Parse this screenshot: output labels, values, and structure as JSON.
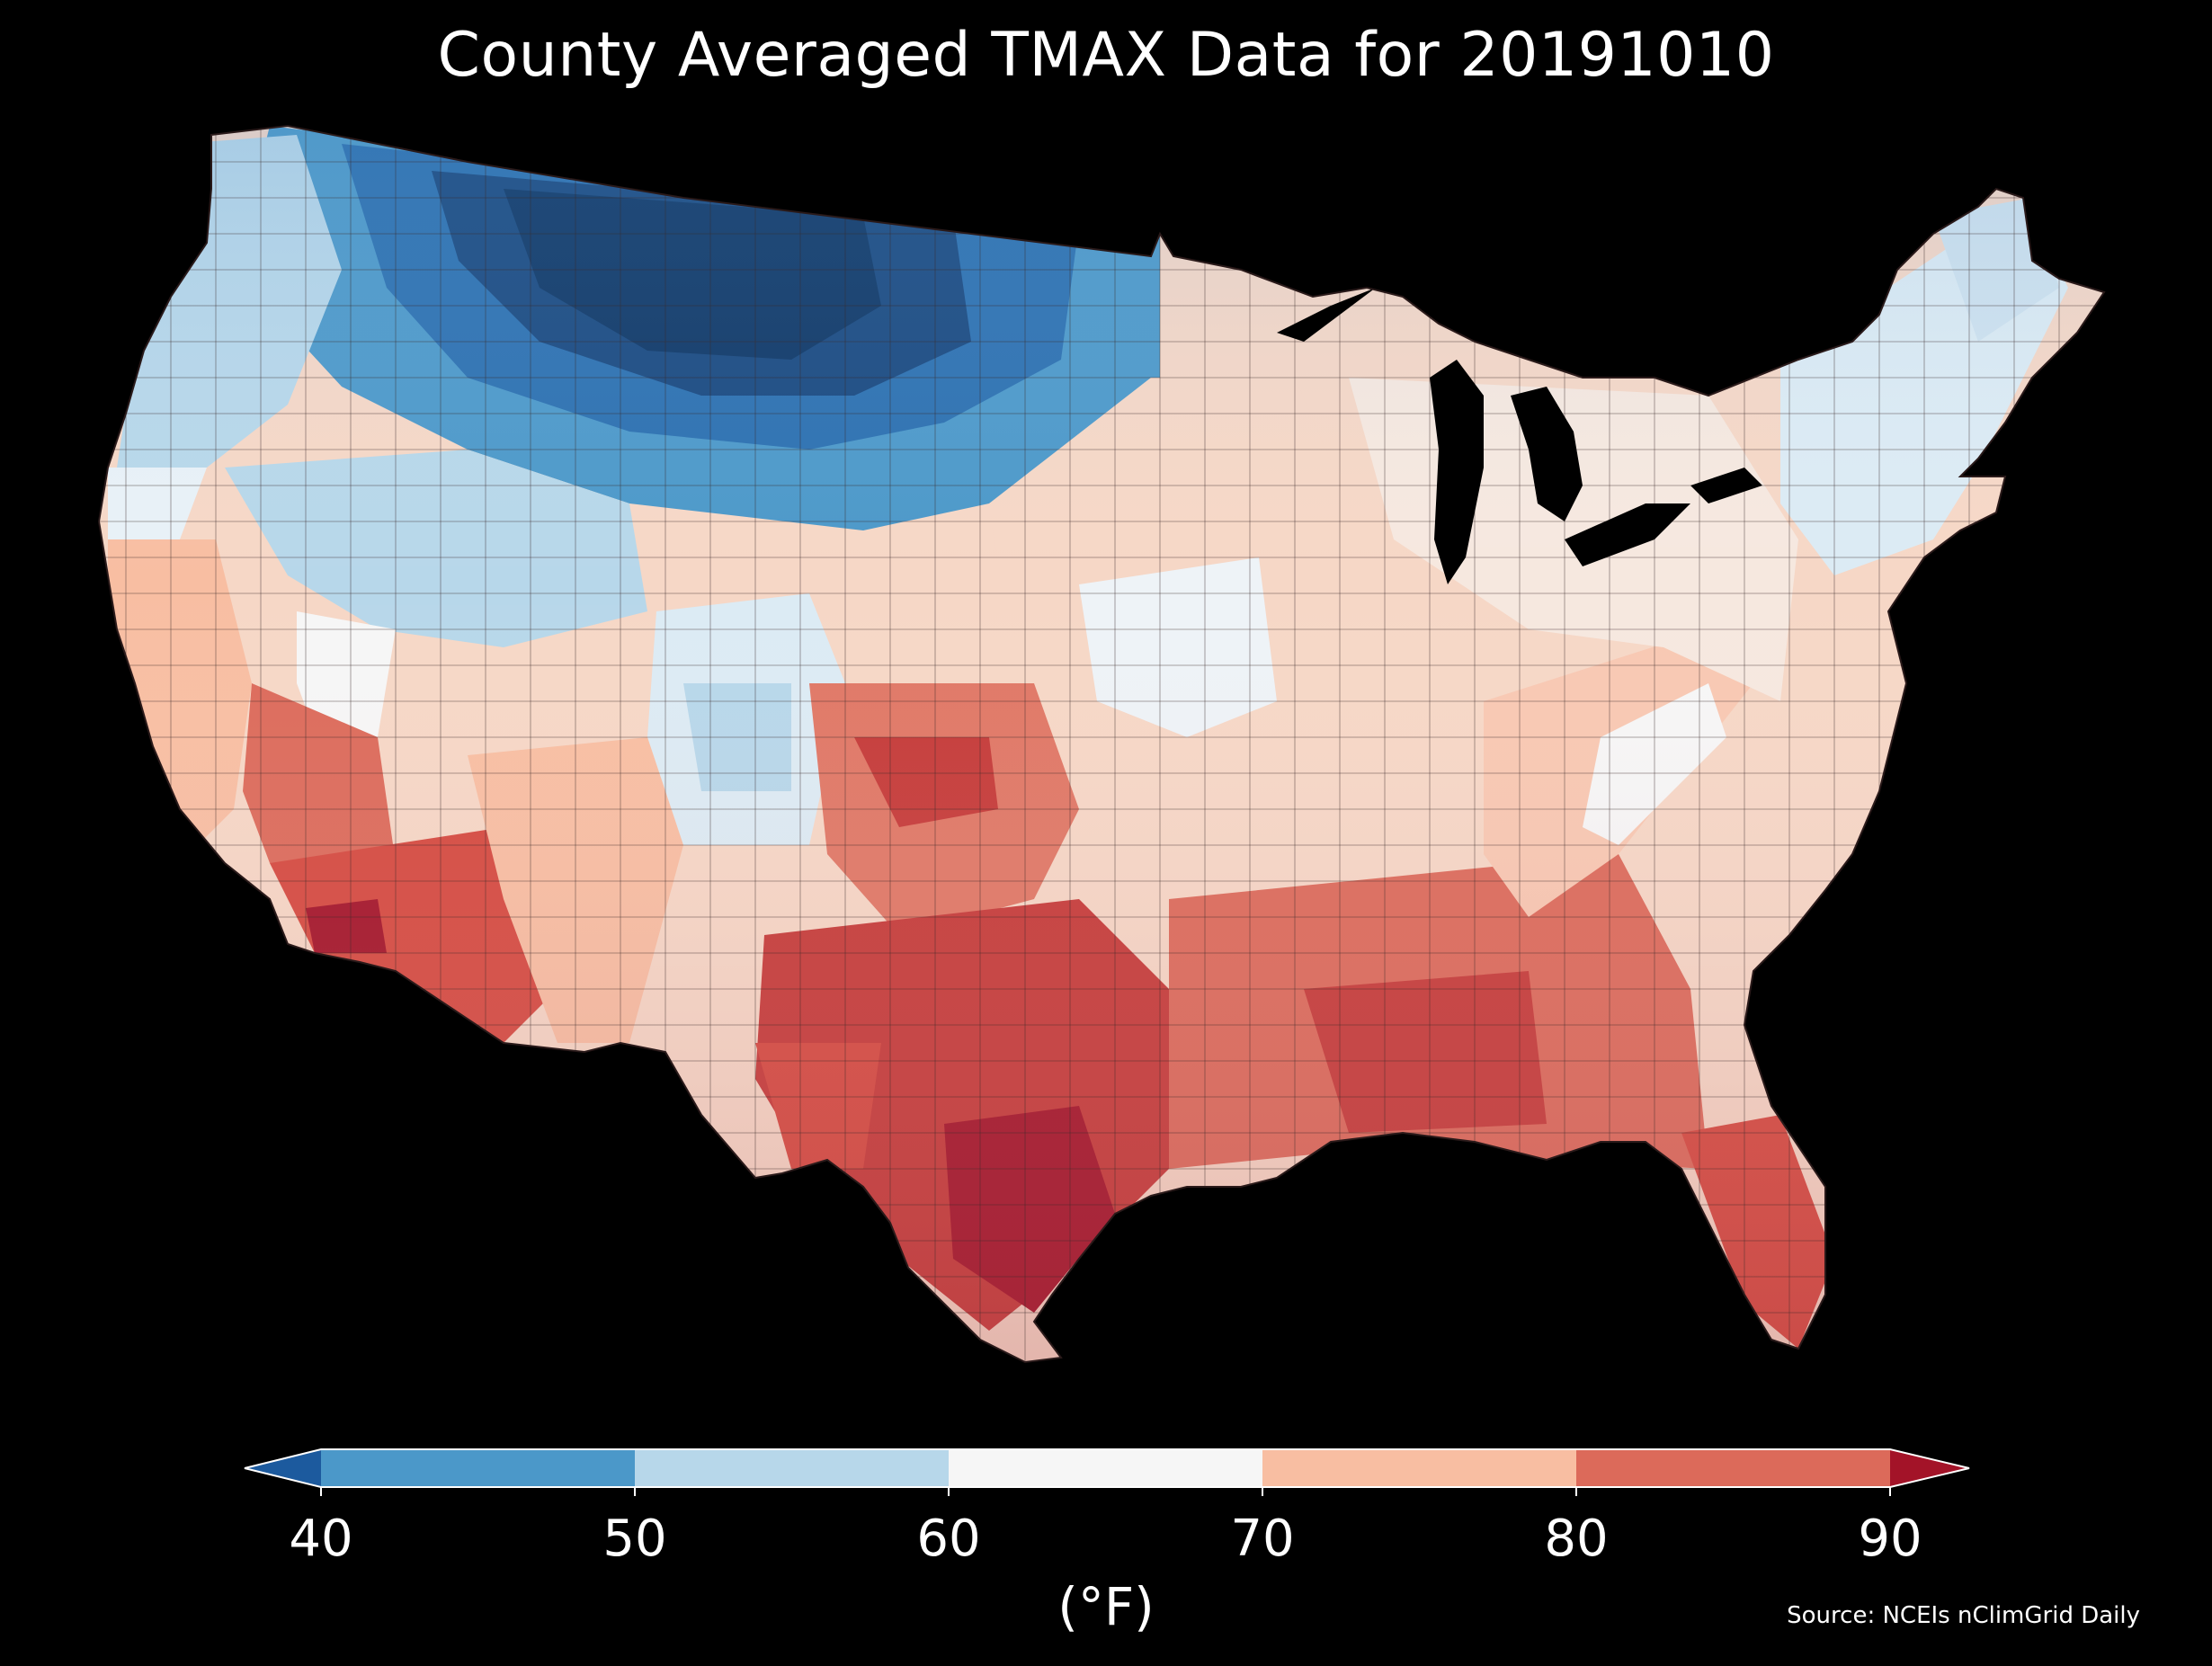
{
  "title": "County Averaged TMAX Data for 20191010",
  "colorbar": {
    "ticks": [
      "40",
      "50",
      "60",
      "70",
      "80",
      "90"
    ],
    "unit": "(°F)",
    "bins": [
      {
        "range": "<40",
        "color": "#1c5a9e"
      },
      {
        "range": "40-50",
        "color": "#4b98c9"
      },
      {
        "range": "50-60",
        "color": "#b7d7ea"
      },
      {
        "range": "60-70",
        "color": "#f6f6f6"
      },
      {
        "range": "70-80",
        "color": "#f8bea2"
      },
      {
        "range": "80-90",
        "color": "#dc6a5a"
      },
      {
        "range": ">90",
        "color": "#a31328"
      }
    ]
  },
  "source": "Source: NCEIs nClimGrid Daily",
  "colors": {
    "background": "#000000",
    "county_border": "#3a2a2a"
  }
}
